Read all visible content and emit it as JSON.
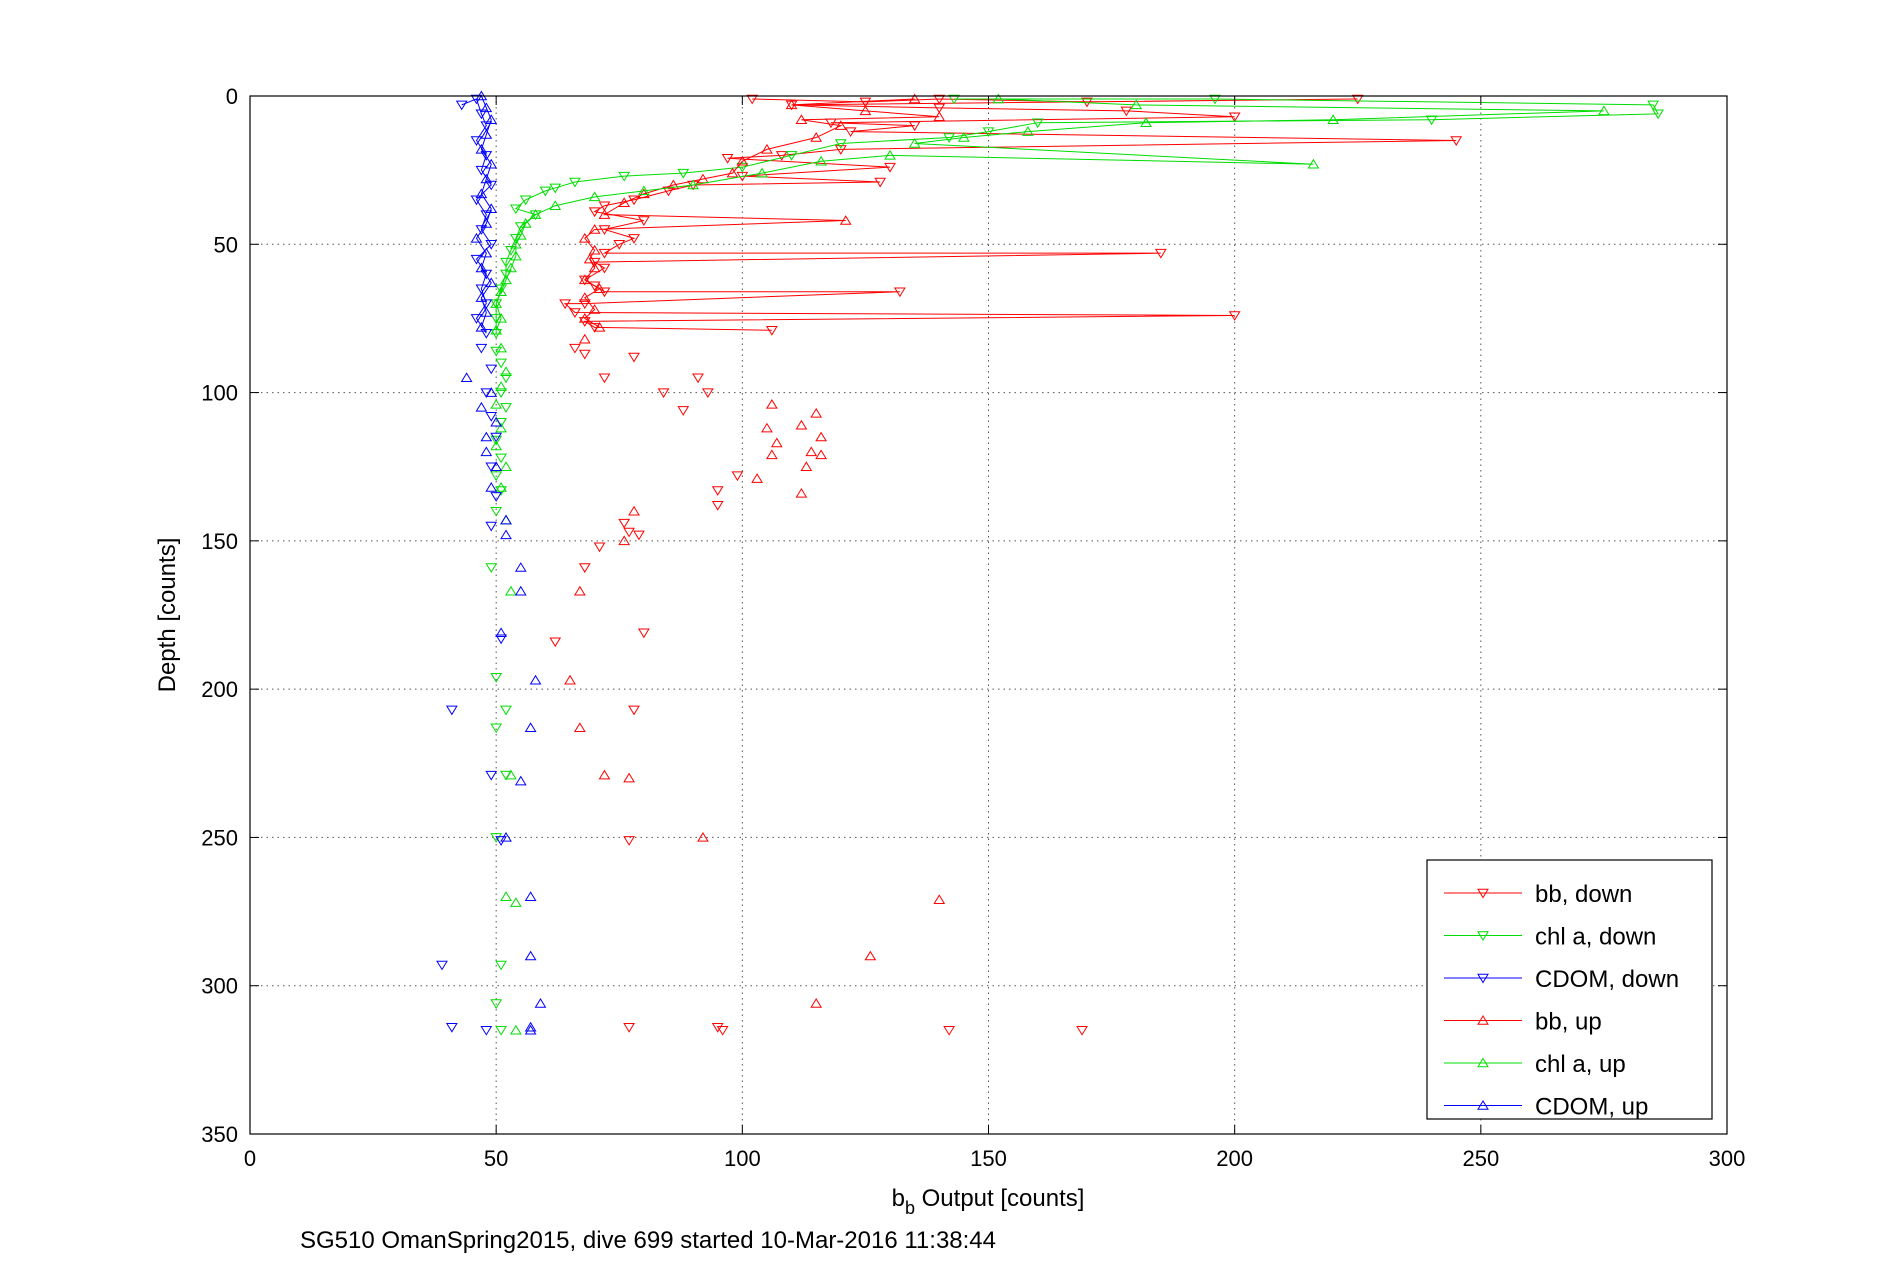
{
  "chart_data": {
    "type": "scatter",
    "xlabel_main": "b",
    "xlabel_sub": "b",
    "xlabel_rest": " Output [counts]",
    "ylabel": "Depth [counts]",
    "footer": "SG510 OmanSpring2015, dive 699 started 10-Mar-2016 11:38:44",
    "xlim": [
      0,
      300
    ],
    "ylim": [
      0,
      350
    ],
    "y_reversed": true,
    "grid": true,
    "legend_position": "bottom-right",
    "x_ticks": [
      "0",
      "50",
      "100",
      "150",
      "200",
      "250",
      "300"
    ],
    "y_ticks": [
      "0",
      "50",
      "100",
      "150",
      "200",
      "250",
      "300",
      "350"
    ],
    "series": [
      {
        "name": "bb, down",
        "color": "#ff0000",
        "marker": "triangle-down",
        "points": [
          [
            102,
            1
          ],
          [
            125,
            2
          ],
          [
            140,
            1
          ],
          [
            170,
            2
          ],
          [
            225,
            1
          ],
          [
            110,
            3
          ],
          [
            140,
            4
          ],
          [
            178,
            5
          ],
          [
            200,
            7
          ],
          [
            118,
            9
          ],
          [
            135,
            10
          ],
          [
            122,
            12
          ],
          [
            245,
            15
          ],
          [
            120,
            18
          ],
          [
            108,
            20
          ],
          [
            97,
            21
          ],
          [
            130,
            24
          ],
          [
            100,
            27
          ],
          [
            128,
            29
          ],
          [
            90,
            30
          ],
          [
            85,
            32
          ],
          [
            78,
            35
          ],
          [
            72,
            37
          ],
          [
            70,
            39
          ],
          [
            80,
            42
          ],
          [
            72,
            45
          ],
          [
            78,
            48
          ],
          [
            75,
            50
          ],
          [
            72,
            53
          ],
          [
            185,
            53
          ],
          [
            70,
            56
          ],
          [
            72,
            58
          ],
          [
            68,
            62
          ],
          [
            70,
            64
          ],
          [
            72,
            66
          ],
          [
            132,
            66
          ],
          [
            68,
            70
          ],
          [
            64,
            70
          ],
          [
            66,
            73
          ],
          [
            200,
            74
          ],
          [
            68,
            76
          ],
          [
            70,
            78
          ],
          [
            106,
            79
          ],
          [
            66,
            85
          ],
          [
            68,
            87
          ],
          [
            78,
            88
          ],
          [
            72,
            95
          ],
          [
            91,
            95
          ],
          [
            84,
            100
          ],
          [
            93,
            100
          ],
          [
            88,
            106
          ],
          [
            95,
            133
          ],
          [
            95,
            138
          ],
          [
            99,
            128
          ],
          [
            76,
            144
          ],
          [
            79,
            148
          ],
          [
            77,
            147
          ],
          [
            71,
            152
          ],
          [
            68,
            159
          ],
          [
            80,
            181
          ],
          [
            62,
            184
          ],
          [
            78,
            207
          ],
          [
            77,
            251
          ],
          [
            77,
            314
          ],
          [
            95,
            314
          ],
          [
            96,
            315
          ],
          [
            142,
            315
          ],
          [
            169,
            315
          ]
        ]
      },
      {
        "name": "chl a, down",
        "color": "#00dd00",
        "marker": "triangle-down",
        "points": [
          [
            143,
            1
          ],
          [
            196,
            1
          ],
          [
            285,
            3
          ],
          [
            286,
            6
          ],
          [
            240,
            8
          ],
          [
            160,
            9
          ],
          [
            150,
            12
          ],
          [
            142,
            14
          ],
          [
            120,
            16
          ],
          [
            110,
            20
          ],
          [
            100,
            24
          ],
          [
            88,
            26
          ],
          [
            76,
            27
          ],
          [
            66,
            29
          ],
          [
            62,
            31
          ],
          [
            60,
            32
          ],
          [
            56,
            35
          ],
          [
            54,
            38
          ],
          [
            58,
            40
          ],
          [
            55,
            44
          ],
          [
            54,
            48
          ],
          [
            53,
            52
          ],
          [
            52,
            56
          ],
          [
            52,
            60
          ],
          [
            51,
            65
          ],
          [
            50,
            70
          ],
          [
            50,
            75
          ],
          [
            50,
            80
          ],
          [
            50,
            86
          ],
          [
            51,
            90
          ],
          [
            52,
            95
          ],
          [
            51,
            100
          ],
          [
            52,
            105
          ],
          [
            51,
            110
          ],
          [
            50,
            116
          ],
          [
            51,
            122
          ],
          [
            50,
            128
          ],
          [
            51,
            133
          ],
          [
            50,
            140
          ],
          [
            49,
            159
          ],
          [
            50,
            196
          ],
          [
            52,
            207
          ],
          [
            50,
            213
          ],
          [
            52,
            229
          ],
          [
            50,
            250
          ],
          [
            51,
            293
          ],
          [
            50,
            306
          ],
          [
            51,
            315
          ]
        ]
      },
      {
        "name": "CDOM, down",
        "color": "#0000ff",
        "marker": "triangle-down",
        "points": [
          [
            43,
            3
          ],
          [
            46,
            1
          ],
          [
            47,
            6
          ],
          [
            48,
            10
          ],
          [
            46,
            15
          ],
          [
            48,
            20
          ],
          [
            47,
            25
          ],
          [
            49,
            30
          ],
          [
            46,
            35
          ],
          [
            48,
            40
          ],
          [
            47,
            45
          ],
          [
            49,
            50
          ],
          [
            46,
            55
          ],
          [
            48,
            60
          ],
          [
            47,
            65
          ],
          [
            48,
            70
          ],
          [
            46,
            75
          ],
          [
            48,
            80
          ],
          [
            47,
            85
          ],
          [
            49,
            92
          ],
          [
            48,
            100
          ],
          [
            49,
            108
          ],
          [
            50,
            115
          ],
          [
            49,
            125
          ],
          [
            50,
            135
          ],
          [
            49,
            145
          ],
          [
            51,
            183
          ],
          [
            41,
            207
          ],
          [
            49,
            229
          ],
          [
            51,
            251
          ],
          [
            39,
            293
          ],
          [
            41,
            314
          ],
          [
            48,
            315
          ]
        ]
      },
      {
        "name": "bb, up",
        "color": "#ff0000",
        "marker": "triangle-up",
        "points": [
          [
            135,
            1
          ],
          [
            110,
            3
          ],
          [
            125,
            5
          ],
          [
            140,
            7
          ],
          [
            112,
            8
          ],
          [
            120,
            10
          ],
          [
            115,
            14
          ],
          [
            105,
            18
          ],
          [
            100,
            22
          ],
          [
            98,
            26
          ],
          [
            92,
            28
          ],
          [
            86,
            30
          ],
          [
            80,
            33
          ],
          [
            76,
            36
          ],
          [
            72,
            40
          ],
          [
            121,
            42
          ],
          [
            70,
            45
          ],
          [
            68,
            48
          ],
          [
            70,
            52
          ],
          [
            69,
            55
          ],
          [
            70,
            58
          ],
          [
            68,
            62
          ],
          [
            71,
            65
          ],
          [
            68,
            68
          ],
          [
            70,
            72
          ],
          [
            68,
            75
          ],
          [
            71,
            78
          ],
          [
            68,
            82
          ],
          [
            106,
            104
          ],
          [
            115,
            107
          ],
          [
            105,
            112
          ],
          [
            112,
            111
          ],
          [
            116,
            115
          ],
          [
            114,
            120
          ],
          [
            107,
            117
          ],
          [
            113,
            125
          ],
          [
            116,
            121
          ],
          [
            106,
            121
          ],
          [
            103,
            129
          ],
          [
            112,
            134
          ],
          [
            78,
            140
          ],
          [
            76,
            150
          ],
          [
            67,
            167
          ],
          [
            65,
            197
          ],
          [
            67,
            213
          ],
          [
            72,
            229
          ],
          [
            77,
            230
          ],
          [
            92,
            250
          ],
          [
            126,
            290
          ],
          [
            140,
            271
          ],
          [
            115,
            306
          ]
        ]
      },
      {
        "name": "chl a, up",
        "color": "#00dd00",
        "marker": "triangle-up",
        "points": [
          [
            152,
            1
          ],
          [
            180,
            3
          ],
          [
            275,
            5
          ],
          [
            220,
            8
          ],
          [
            182,
            9
          ],
          [
            158,
            12
          ],
          [
            145,
            14
          ],
          [
            135,
            16
          ],
          [
            216,
            23
          ],
          [
            130,
            20
          ],
          [
            116,
            22
          ],
          [
            104,
            26
          ],
          [
            90,
            30
          ],
          [
            80,
            32
          ],
          [
            70,
            34
          ],
          [
            62,
            37
          ],
          [
            58,
            40
          ],
          [
            56,
            43
          ],
          [
            55,
            47
          ],
          [
            54,
            50
          ],
          [
            54,
            54
          ],
          [
            53,
            58
          ],
          [
            52,
            62
          ],
          [
            51,
            66
          ],
          [
            50,
            70
          ],
          [
            51,
            75
          ],
          [
            50,
            79
          ],
          [
            51,
            85
          ],
          [
            52,
            93
          ],
          [
            51,
            98
          ],
          [
            50,
            104
          ],
          [
            51,
            112
          ],
          [
            50,
            118
          ],
          [
            52,
            125
          ],
          [
            51,
            132
          ],
          [
            52,
            143
          ],
          [
            53,
            167
          ],
          [
            53,
            229
          ],
          [
            52,
            270
          ],
          [
            54,
            272
          ],
          [
            54,
            315
          ]
        ]
      },
      {
        "name": "CDOM, up",
        "color": "#0000ff",
        "marker": "triangle-up",
        "points": [
          [
            47,
            0
          ],
          [
            48,
            4
          ],
          [
            49,
            8
          ],
          [
            48,
            13
          ],
          [
            47,
            18
          ],
          [
            49,
            23
          ],
          [
            48,
            28
          ],
          [
            47,
            33
          ],
          [
            49,
            38
          ],
          [
            48,
            43
          ],
          [
            46,
            48
          ],
          [
            48,
            53
          ],
          [
            47,
            58
          ],
          [
            49,
            63
          ],
          [
            47,
            68
          ],
          [
            48,
            73
          ],
          [
            47,
            78
          ],
          [
            44,
            95
          ],
          [
            49,
            100
          ],
          [
            47,
            105
          ],
          [
            50,
            110
          ],
          [
            48,
            115
          ],
          [
            48,
            120
          ],
          [
            50,
            125
          ],
          [
            49,
            132
          ],
          [
            52,
            143
          ],
          [
            52,
            148
          ],
          [
            55,
            159
          ],
          [
            55,
            167
          ],
          [
            51,
            181
          ],
          [
            58,
            197
          ],
          [
            57,
            213
          ],
          [
            55,
            231
          ],
          [
            52,
            250
          ],
          [
            57,
            270
          ],
          [
            57,
            290
          ],
          [
            59,
            306
          ],
          [
            57,
            314
          ],
          [
            57,
            315
          ]
        ]
      }
    ]
  }
}
